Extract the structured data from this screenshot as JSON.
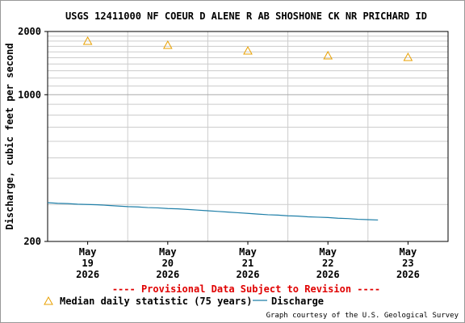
{
  "chart_data": {
    "type": "line",
    "title": "USGS 12411000 NF COEUR D ALENE R AB SHOSHONE CK NR PRICHARD ID",
    "ylabel": "Discharge, cubic feet per second",
    "note": "---- Provisional Data Subject to Revision ----",
    "credit": "Graph courtesy of the U.S. Geological Survey",
    "ylog": true,
    "ylim": [
      200,
      2000
    ],
    "yticks": [
      200,
      1000,
      2000
    ],
    "minor_yticks": [
      300,
      400,
      500,
      600,
      700,
      800,
      900,
      1100,
      1200,
      1300,
      1400,
      1500,
      1600,
      1700,
      1800,
      1900
    ],
    "xlim": [
      0,
      5
    ],
    "xticks": [
      {
        "value": 0.5,
        "label": "May\n19\n2026"
      },
      {
        "value": 1.5,
        "label": "May\n20\n2026"
      },
      {
        "value": 2.5,
        "label": "May\n21\n2026"
      },
      {
        "value": 3.5,
        "label": "May\n22\n2026"
      },
      {
        "value": 4.5,
        "label": "May\n23\n2026"
      }
    ],
    "xgrid": [
      1,
      2,
      3,
      4
    ],
    "series": [
      {
        "name": "Median daily statistic (75 years)",
        "color": "#e8a000",
        "marker": "triangle",
        "x": [
          0.5,
          1.5,
          2.5,
          3.5,
          4.5
        ],
        "values": [
          1798,
          1720,
          1617,
          1534,
          1506
        ]
      },
      {
        "name": "Discharge",
        "color": "#1f7fa8",
        "marker": "line",
        "x": [
          0,
          0.125,
          0.25,
          0.375,
          0.5,
          0.625,
          0.75,
          0.875,
          1,
          1.125,
          1.25,
          1.375,
          1.5,
          1.625,
          1.75,
          1.875,
          2,
          2.125,
          2.25,
          2.375,
          2.5,
          2.625,
          2.75,
          2.875,
          3,
          3.125,
          3.25,
          3.375,
          3.5,
          3.625,
          3.75,
          3.875,
          4,
          4.125
        ],
        "values": [
          306,
          304,
          303,
          301,
          300,
          299,
          297,
          295,
          293,
          292,
          290,
          289,
          287,
          286,
          284,
          282,
          280,
          278,
          276,
          274,
          272,
          270,
          268,
          267,
          265,
          264,
          262,
          261,
          260,
          258,
          257,
          255,
          254,
          253
        ]
      }
    ]
  }
}
